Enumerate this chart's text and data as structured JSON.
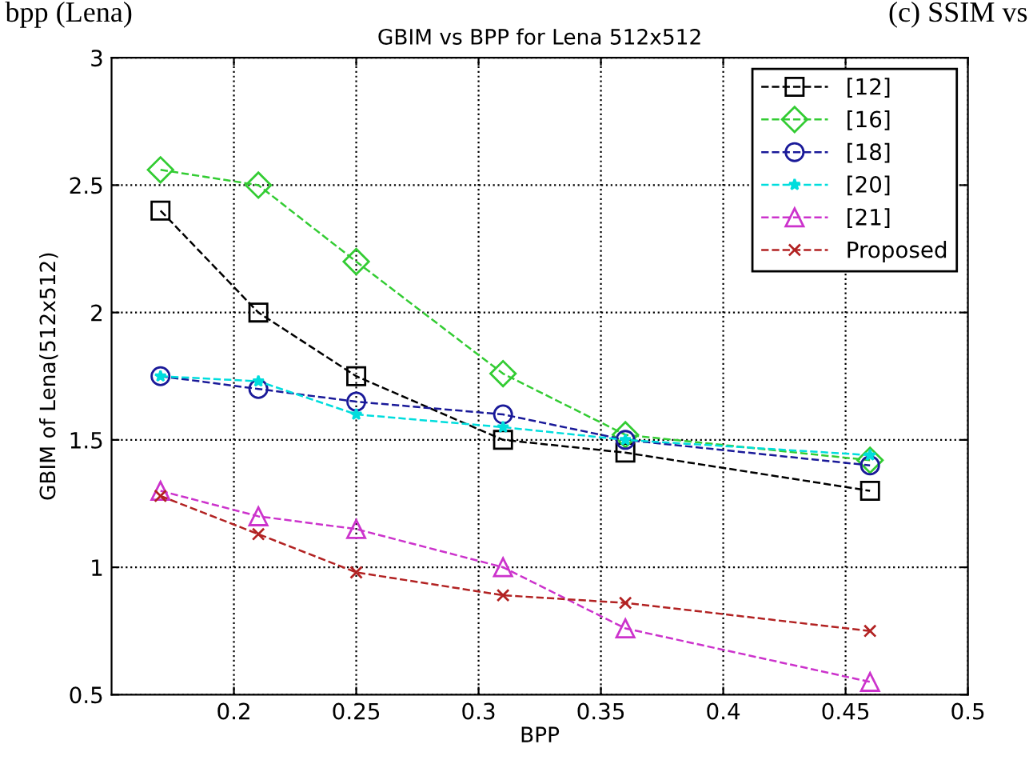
{
  "chart_data": {
    "type": "line",
    "title": "GBIM vs BPP for Lena 512x512",
    "xlabel": "BPP",
    "ylabel": "GBIM of Lena(512x512)",
    "annotations": [
      "bpp (Lena)",
      "(c) SSIM vs"
    ],
    "x": [
      0.17,
      0.21,
      0.25,
      0.31,
      0.36,
      0.46
    ],
    "series": [
      {
        "name": "[12]",
        "color": "#000000",
        "marker": "square",
        "values": [
          2.4,
          2.0,
          1.75,
          1.5,
          1.45,
          1.3
        ]
      },
      {
        "name": "[16]",
        "color": "#33cc33",
        "marker": "diamond",
        "values": [
          2.56,
          2.5,
          2.2,
          1.76,
          1.52,
          1.42
        ]
      },
      {
        "name": "[18]",
        "color": "#1a1a99",
        "marker": "circle",
        "values": [
          1.75,
          1.7,
          1.65,
          1.6,
          1.5,
          1.4
        ]
      },
      {
        "name": "[20]",
        "color": "#00dddd",
        "marker": "star",
        "values": [
          1.75,
          1.73,
          1.6,
          1.55,
          1.5,
          1.44
        ]
      },
      {
        "name": "[21]",
        "color": "#cc33cc",
        "marker": "triangle",
        "values": [
          1.3,
          1.2,
          1.15,
          1.0,
          0.76,
          0.55
        ]
      },
      {
        "name": "Proposed",
        "color": "#b22222",
        "marker": "cross",
        "values": [
          1.28,
          1.13,
          0.98,
          0.89,
          0.86,
          0.75
        ]
      }
    ],
    "xlim": [
      0.15,
      0.5
    ],
    "xticks": [
      0.2,
      0.25,
      0.3,
      0.35,
      0.4,
      0.45,
      0.5
    ],
    "ylim": [
      0.5,
      3
    ],
    "yticks": [
      0.5,
      1,
      1.5,
      2,
      2.5,
      3
    ],
    "grid": true,
    "legend": "top right",
    "line_style": "dashed"
  }
}
